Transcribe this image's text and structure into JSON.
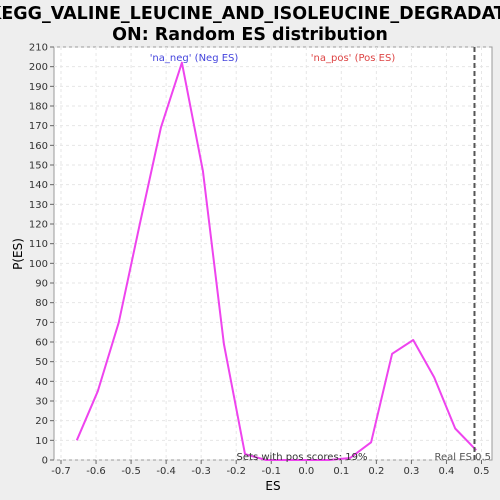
{
  "chart_data": {
    "type": "line",
    "title_line1": "KEGG_VALINE_LEUCINE_AND_ISOLEUCINE_DEGRADATI",
    "title_line2": "ON: Random ES distribution",
    "xlabel": "ES",
    "ylabel": "P(ES)",
    "xlim": [
      -0.72,
      0.53
    ],
    "ylim": [
      0,
      210
    ],
    "x_ticks": [
      -0.7,
      -0.6,
      -0.5,
      -0.4,
      -0.3,
      -0.2,
      -0.1,
      0.0,
      0.1,
      0.2,
      0.3,
      0.4,
      0.5
    ],
    "x_tick_labels": [
      "-0.7",
      "-0.6",
      "-0.5",
      "-0.4",
      "-0.3",
      "-0.2",
      "-0.1",
      "0.0",
      "0.1",
      "0.2",
      "0.3",
      "0.4",
      "0.5"
    ],
    "y_ticks": [
      0,
      10,
      20,
      30,
      40,
      50,
      60,
      70,
      80,
      90,
      100,
      110,
      120,
      130,
      140,
      150,
      160,
      170,
      180,
      190,
      200,
      210
    ],
    "grid": true,
    "series": [
      {
        "color": "#ee44ee",
        "x": [
          -0.655,
          -0.595,
          -0.535,
          -0.475,
          -0.415,
          -0.355,
          -0.295,
          -0.235,
          -0.175,
          -0.115,
          -0.055,
          0.005,
          0.065,
          0.125,
          0.185,
          0.245,
          0.305,
          0.365,
          0.425,
          0.485
        ],
        "y": [
          10,
          35,
          70,
          120,
          169,
          202,
          147,
          59,
          3,
          0,
          0,
          0,
          0,
          1,
          9,
          54,
          61,
          42,
          16,
          5
        ]
      }
    ],
    "real_es_line": {
      "x": 0.48,
      "style": "dashed",
      "color": "#555555"
    },
    "annotations": {
      "neg_label": "'na_neg' (Neg ES)",
      "pos_label": "'na_pos' (Pos ES)",
      "sets_text": "Sets with pos scores: 19%",
      "real_es_text": "Real ES 0.5"
    },
    "colors": {
      "neg": "#4444dd",
      "pos": "#dd4444",
      "line": "#ee44ee"
    }
  }
}
